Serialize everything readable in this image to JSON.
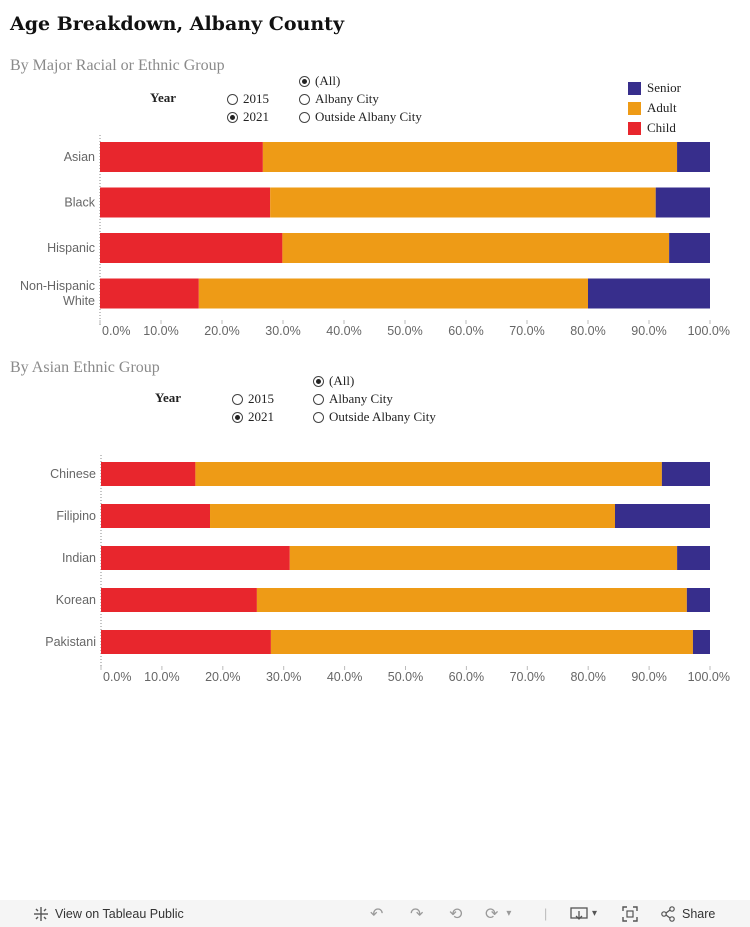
{
  "title": "Age Breakdown, Albany County",
  "colors": {
    "senior": "#372e8c",
    "adult": "#ee9b16",
    "child": "#e8262d",
    "axis": "#999999"
  },
  "legend": [
    {
      "label": "Senior",
      "color": "#372e8c"
    },
    {
      "label": "Adult",
      "color": "#ee9b16"
    },
    {
      "label": "Child",
      "color": "#e8262d"
    }
  ],
  "section1": {
    "title": "By Major Racial or Ethnic Group",
    "year_label": "Year",
    "year_options": [
      {
        "label": "2015",
        "selected": false
      },
      {
        "label": "2021",
        "selected": true
      }
    ],
    "area_options": [
      {
        "label": "(All)",
        "selected": true
      },
      {
        "label": "Albany City",
        "selected": false
      },
      {
        "label": "Outside Albany City",
        "selected": false
      }
    ]
  },
  "section2": {
    "title": "By Asian Ethnic Group",
    "year_label": "Year",
    "year_options": [
      {
        "label": "2015",
        "selected": false
      },
      {
        "label": "2021",
        "selected": true
      }
    ],
    "area_options": [
      {
        "label": "(All)",
        "selected": true
      },
      {
        "label": "Albany City",
        "selected": false
      },
      {
        "label": "Outside Albany City",
        "selected": false
      }
    ]
  },
  "chart_data": [
    {
      "type": "bar",
      "orientation": "horizontal",
      "stacked": true,
      "title": "By Major Racial or Ethnic Group",
      "categories": [
        [
          "Asian"
        ],
        [
          "Black"
        ],
        [
          "Hispanic"
        ],
        [
          "Non-Hispanic",
          "White"
        ]
      ],
      "series": [
        {
          "name": "Child",
          "values": [
            26.7,
            27.9,
            29.9,
            16.2
          ]
        },
        {
          "name": "Adult",
          "values": [
            67.9,
            63.2,
            63.4,
            63.8
          ]
        },
        {
          "name": "Senior",
          "values": [
            5.4,
            8.9,
            6.7,
            20.0
          ]
        }
      ],
      "xlim": [
        0,
        100
      ],
      "xticks": [
        "0.0%",
        "10.0%",
        "20.0%",
        "30.0%",
        "40.0%",
        "50.0%",
        "60.0%",
        "70.0%",
        "80.0%",
        "90.0%",
        "100.0%"
      ]
    },
    {
      "type": "bar",
      "orientation": "horizontal",
      "stacked": true,
      "title": "By Asian Ethnic Group",
      "categories": [
        [
          "Chinese"
        ],
        [
          "Filipino"
        ],
        [
          "Indian"
        ],
        [
          "Korean"
        ],
        [
          "Pakistani"
        ]
      ],
      "series": [
        {
          "name": "Child",
          "values": [
            15.5,
            17.9,
            31.0,
            25.6,
            27.9
          ]
        },
        {
          "name": "Adult",
          "values": [
            76.6,
            66.5,
            63.6,
            70.6,
            69.3
          ]
        },
        {
          "name": "Senior",
          "values": [
            7.9,
            15.6,
            5.4,
            3.8,
            2.8
          ]
        }
      ],
      "xlim": [
        0,
        100
      ],
      "xticks": [
        "0.0%",
        "10.0%",
        "20.0%",
        "30.0%",
        "40.0%",
        "50.0%",
        "60.0%",
        "70.0%",
        "80.0%",
        "90.0%",
        "100.0%"
      ]
    }
  ],
  "footer": {
    "view_label": "View on Tableau Public",
    "share_label": "Share"
  }
}
